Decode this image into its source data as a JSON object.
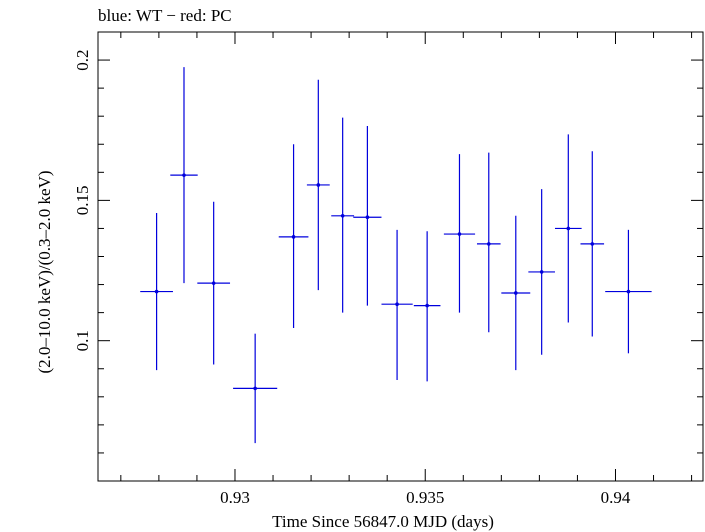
{
  "chart_data": {
    "type": "scatter",
    "title": "blue: WT − red: PC",
    "xlabel": "Time Since 56847.0 MJD (days)",
    "ylabel": "(2.0–10.0 keV)/(0.3–2.0 keV)",
    "xlim": [
      0.9264,
      0.9423
    ],
    "ylim": [
      0.05,
      0.21
    ],
    "x_ticks": [
      {
        "value": 0.93,
        "label": "0.93"
      },
      {
        "value": 0.935,
        "label": "0.935"
      },
      {
        "value": 0.94,
        "label": "0.94"
      }
    ],
    "y_ticks": [
      {
        "value": 0.1,
        "label": "0.1"
      },
      {
        "value": 0.15,
        "label": "0.15"
      },
      {
        "value": 0.2,
        "label": "0.2"
      }
    ],
    "series": [
      {
        "name": "WT",
        "color": "#0000dd",
        "points": [
          {
            "x": 0.92794,
            "xerr": 0.00043,
            "y": 0.1175,
            "ylo": 0.0895,
            "yhi": 0.1455
          },
          {
            "x": 0.92866,
            "xerr": 0.00036,
            "y": 0.159,
            "ylo": 0.1205,
            "yhi": 0.1975
          },
          {
            "x": 0.92944,
            "xerr": 0.00043,
            "y": 0.1205,
            "ylo": 0.0915,
            "yhi": 0.1495
          },
          {
            "x": 0.93053,
            "xerr": 0.00058,
            "y": 0.083,
            "ylo": 0.0635,
            "yhi": 0.1025
          },
          {
            "x": 0.93154,
            "xerr": 0.00039,
            "y": 0.137,
            "ylo": 0.1045,
            "yhi": 0.17
          },
          {
            "x": 0.93219,
            "xerr": 0.0003,
            "y": 0.1555,
            "ylo": 0.118,
            "yhi": 0.193
          },
          {
            "x": 0.93283,
            "xerr": 0.0003,
            "y": 0.1445,
            "ylo": 0.11,
            "yhi": 0.1795
          },
          {
            "x": 0.93348,
            "xerr": 0.00037,
            "y": 0.144,
            "ylo": 0.1125,
            "yhi": 0.1765
          },
          {
            "x": 0.93426,
            "xerr": 0.00041,
            "y": 0.113,
            "ylo": 0.086,
            "yhi": 0.1395
          },
          {
            "x": 0.93505,
            "xerr": 0.00035,
            "y": 0.1125,
            "ylo": 0.0855,
            "yhi": 0.139
          },
          {
            "x": 0.9359,
            "xerr": 0.00041,
            "y": 0.138,
            "ylo": 0.11,
            "yhi": 0.1665
          },
          {
            "x": 0.93667,
            "xerr": 0.00031,
            "y": 0.1345,
            "ylo": 0.103,
            "yhi": 0.167
          },
          {
            "x": 0.93738,
            "xerr": 0.00038,
            "y": 0.117,
            "ylo": 0.0895,
            "yhi": 0.1445
          },
          {
            "x": 0.93806,
            "xerr": 0.00035,
            "y": 0.1245,
            "ylo": 0.095,
            "yhi": 0.154
          },
          {
            "x": 0.93876,
            "xerr": 0.00035,
            "y": 0.14,
            "ylo": 0.1065,
            "yhi": 0.1735
          },
          {
            "x": 0.93939,
            "xerr": 0.00031,
            "y": 0.1345,
            "ylo": 0.1015,
            "yhi": 0.1675
          },
          {
            "x": 0.94034,
            "xerr": 0.00061,
            "y": 0.1175,
            "ylo": 0.0955,
            "yhi": 0.1395
          }
        ]
      }
    ]
  }
}
